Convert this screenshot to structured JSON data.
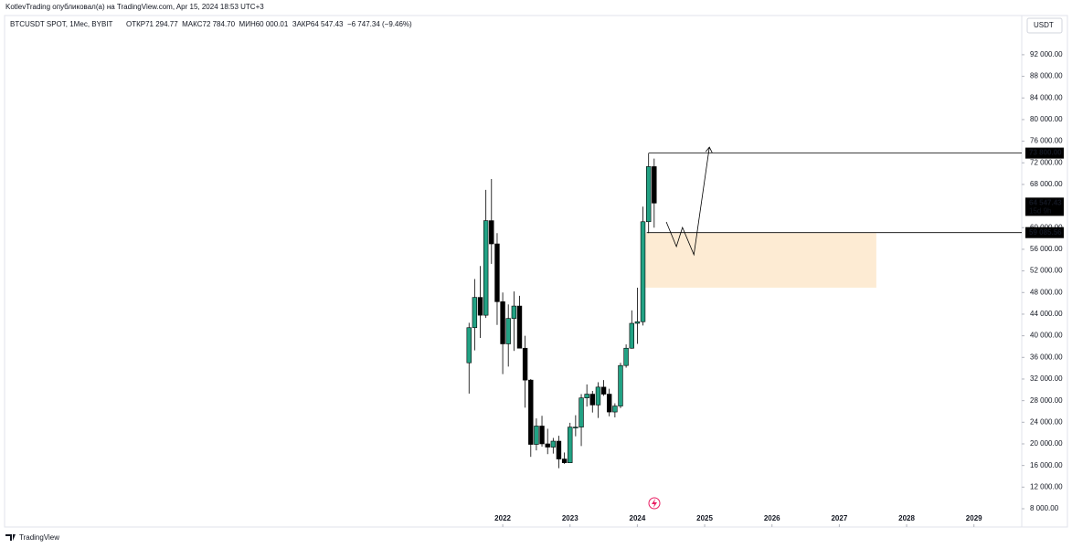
{
  "header": {
    "attribution": "KotlevTrading опубликовал(а) на TradingView.com, Apr 15, 2024 18:53 UTC+3"
  },
  "footer": {
    "brand": "TradingView"
  },
  "chart_data": {
    "type": "candlestick",
    "title": "BTCUSDT SPOT, 1Мес, BYBIT",
    "subtitle": "ОТКР71 294.77  МАКС72 784.70  МИН60 000.01  ЗАКР64 547.43  −6 747.34 (−9.46%)",
    "currency": "USDT",
    "x": [
      2021.5,
      2021.583,
      2021.667,
      2021.75,
      2021.833,
      2021.917,
      2022.0,
      2022.083,
      2022.167,
      2022.25,
      2022.333,
      2022.417,
      2022.5,
      2022.583,
      2022.667,
      2022.75,
      2022.833,
      2022.917,
      2023.0,
      2023.083,
      2023.167,
      2023.25,
      2023.333,
      2023.417,
      2023.5,
      2023.583,
      2023.667,
      2023.75,
      2023.833,
      2023.917,
      2024.0,
      2024.083,
      2024.167,
      2024.25
    ],
    "open": [
      35000,
      41500,
      47100,
      43800,
      61300,
      57000,
      46300,
      38500,
      43200,
      45500,
      37700,
      31800,
      19900,
      23300,
      20000,
      19400,
      20500,
      17200,
      16500,
      23100,
      23100,
      28500,
      29200,
      27200,
      30500,
      29200,
      25900,
      27000,
      34500,
      37700,
      42300,
      42600,
      61100,
      71294.77
    ],
    "high": [
      42400,
      50500,
      52900,
      67000,
      69000,
      59000,
      48000,
      45800,
      48200,
      47400,
      40000,
      32000,
      24700,
      25200,
      22800,
      21100,
      21500,
      18400,
      23900,
      25300,
      29200,
      31000,
      29800,
      31400,
      31800,
      30200,
      27500,
      35000,
      38400,
      44700,
      48900,
      63900,
      73800,
      72784.7
    ],
    "low": [
      29300,
      37300,
      39600,
      43300,
      53300,
      42000,
      32900,
      34300,
      37200,
      37700,
      26700,
      17600,
      18800,
      19500,
      18100,
      18200,
      15500,
      16300,
      16500,
      21400,
      19600,
      26900,
      25800,
      24800,
      28900,
      25100,
      24900,
      26600,
      34100,
      37600,
      38500,
      41900,
      59000,
      60000.01
    ],
    "close": [
      41500,
      47100,
      43800,
      61300,
      57000,
      46300,
      38500,
      43200,
      45500,
      37700,
      31800,
      19900,
      23300,
      20000,
      19400,
      20500,
      17200,
      16500,
      23100,
      23100,
      28500,
      29200,
      27200,
      30500,
      29200,
      25900,
      27000,
      34500,
      37700,
      42300,
      42600,
      61100,
      71300,
      64547.43
    ],
    "up_color": "#22a284",
    "down_color": "#000000",
    "xlim": [
      2014.6,
      2029.71
    ],
    "xticks": [
      2022,
      2023,
      2024,
      2025,
      2026,
      2027,
      2028,
      2029
    ],
    "ylim": [
      4620,
      99250
    ],
    "yticks": [
      {
        "value": 8000,
        "label": "8 000.00"
      },
      {
        "value": 12000,
        "label": "12 000.00"
      },
      {
        "value": 16000,
        "label": "16 000.00"
      },
      {
        "value": 20000,
        "label": "20 000.00"
      },
      {
        "value": 24000,
        "label": "24 000.00"
      },
      {
        "value": 28000,
        "label": "28 000.00"
      },
      {
        "value": 32000,
        "label": "32 000.00"
      },
      {
        "value": 36000,
        "label": "36 000.00"
      },
      {
        "value": 40000,
        "label": "40 000.00"
      },
      {
        "value": 44000,
        "label": "44 000.00"
      },
      {
        "value": 48000,
        "label": "48 000.00"
      },
      {
        "value": 52000,
        "label": "52 000.00"
      },
      {
        "value": 56000,
        "label": "56 000.00"
      },
      {
        "value": 60000,
        "label": "60 000.00"
      },
      {
        "value": 68000,
        "label": "68 000.00"
      },
      {
        "value": 72000,
        "label": "72 000.00"
      },
      {
        "value": 76000,
        "label": "76 000.00"
      },
      {
        "value": 80000,
        "label": "80 000.00"
      },
      {
        "value": 84000,
        "label": "84 000.00"
      },
      {
        "value": 88000,
        "label": "88 000.00"
      },
      {
        "value": 92000,
        "label": "92 000.00"
      }
    ],
    "levels": [
      {
        "value": 73800,
        "label": "73 800.00",
        "x_start": 2024.17
      },
      {
        "value": 59085.56,
        "label": "59 085.56",
        "x_start": 2024.14
      }
    ],
    "zone": {
      "x": [
        2024.07,
        2027.55
      ],
      "y": [
        48900,
        59000
      ],
      "color": "#fdebd3"
    },
    "path": {
      "x": [
        2024.43,
        2024.58,
        2024.67,
        2024.84,
        2025.07
      ],
      "y": [
        61060,
        56500,
        60050,
        55000,
        74900
      ]
    },
    "last_price": {
      "value": 64547.43,
      "label": "64 547.43",
      "countdown": "15d 9h"
    }
  }
}
